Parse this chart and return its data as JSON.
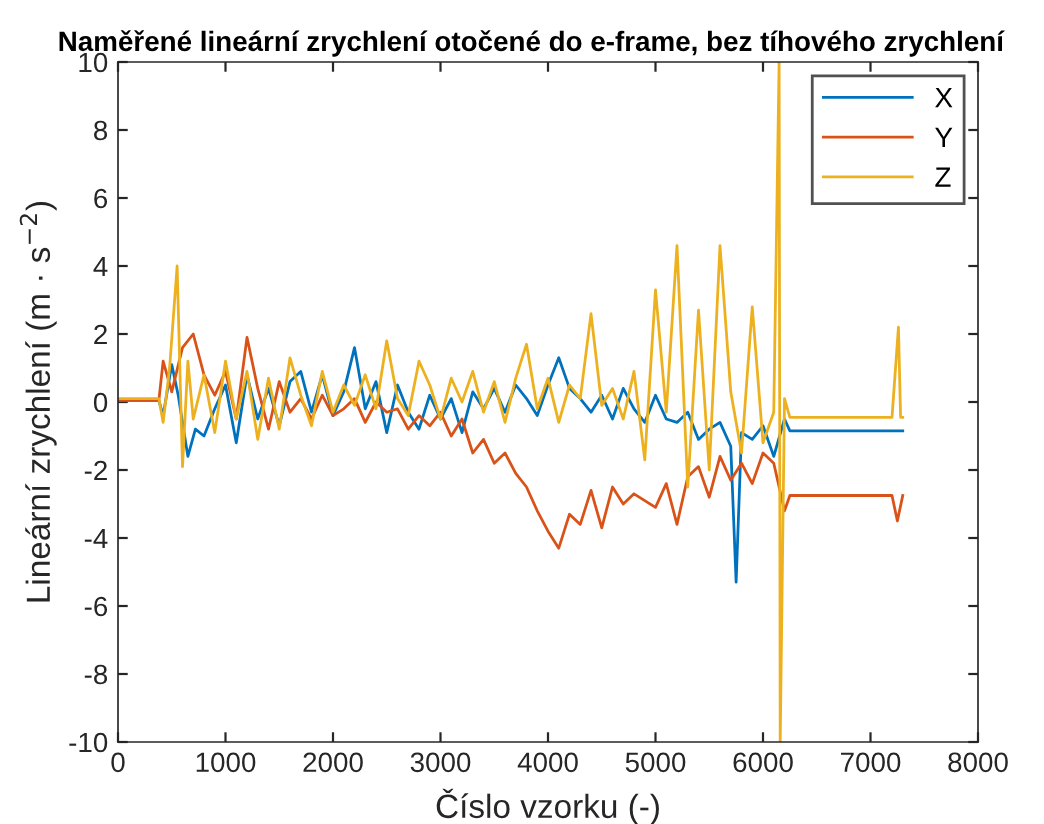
{
  "chart_data": {
    "type": "line",
    "title": "Naměřené lineární zrychlení otočené do e-frame, bez tíhového zrychlení",
    "xlabel": "Číslo vzorku (-)",
    "ylabel": "Lineární zrychlení (m · s$^{−2}$)",
    "xlim": [
      0,
      8000
    ],
    "ylim": [
      -10,
      10
    ],
    "xticks": [
      0,
      1000,
      2000,
      3000,
      4000,
      5000,
      6000,
      7000,
      8000
    ],
    "yticks": [
      -10,
      -8,
      -6,
      -4,
      -2,
      0,
      2,
      4,
      6,
      8,
      10
    ],
    "legend": "top right",
    "grid": false,
    "series": [
      {
        "name": "X",
        "color": "#0072bd",
        "x": [
          0,
          200,
          380,
          420,
          500,
          560,
          650,
          720,
          800,
          900,
          1000,
          1100,
          1200,
          1300,
          1400,
          1500,
          1600,
          1700,
          1800,
          1900,
          2000,
          2100,
          2200,
          2300,
          2400,
          2500,
          2600,
          2700,
          2800,
          2900,
          3000,
          3100,
          3200,
          3300,
          3400,
          3500,
          3600,
          3700,
          3800,
          3900,
          4000,
          4100,
          4200,
          4300,
          4400,
          4500,
          4600,
          4700,
          4800,
          4900,
          5000,
          5100,
          5200,
          5300,
          5400,
          5500,
          5600,
          5700,
          5750,
          5800,
          5900,
          6000,
          6100,
          6200,
          6250,
          6400,
          6800,
          7200,
          7300
        ],
        "values": [
          0.05,
          0.05,
          0.05,
          -0.4,
          1.1,
          0.2,
          -1.6,
          -0.8,
          -1,
          -0.2,
          0.5,
          -1.2,
          0.8,
          -0.5,
          0.4,
          -0.7,
          0.6,
          0.9,
          -0.3,
          0.8,
          -0.4,
          0.3,
          1.6,
          -0.2,
          0.6,
          -0.9,
          0.5,
          -0.3,
          -0.8,
          0.2,
          -0.5,
          0.1,
          -0.9,
          0.3,
          -0.2,
          0.4,
          -0.3,
          0.5,
          0.1,
          -0.4,
          0.5,
          1.3,
          0.4,
          0.1,
          -0.3,
          0.2,
          -0.5,
          0.4,
          -0.2,
          -0.6,
          0.2,
          -0.5,
          -0.6,
          -0.3,
          -1.1,
          -0.8,
          -0.6,
          -1.3,
          -5.3,
          -0.9,
          -1.1,
          -0.7,
          -1.6,
          -0.5,
          -0.85,
          -0.85,
          -0.85,
          -0.85,
          -0.85
        ]
      },
      {
        "name": "Y",
        "color": "#d95319",
        "x": [
          0,
          200,
          380,
          420,
          500,
          600,
          700,
          800,
          900,
          1000,
          1100,
          1200,
          1300,
          1400,
          1500,
          1600,
          1700,
          1800,
          1900,
          2000,
          2100,
          2200,
          2300,
          2400,
          2500,
          2600,
          2700,
          2800,
          2900,
          3000,
          3100,
          3200,
          3300,
          3400,
          3500,
          3600,
          3700,
          3800,
          3900,
          4000,
          4100,
          4200,
          4300,
          4400,
          4500,
          4600,
          4700,
          4800,
          4900,
          5000,
          5100,
          5200,
          5300,
          5400,
          5500,
          5600,
          5700,
          5800,
          5900,
          6000,
          6100,
          6200,
          6250,
          6400,
          6800,
          7200,
          7250,
          7300
        ],
        "values": [
          0.05,
          0.05,
          0.05,
          1.2,
          0.3,
          1.6,
          2,
          0.8,
          0.2,
          0.9,
          -0.5,
          1.9,
          0.4,
          -0.8,
          0.6,
          -0.3,
          0.1,
          -0.5,
          0.2,
          -0.4,
          -0.2,
          0.1,
          -0.6,
          0,
          -0.3,
          -0.2,
          -0.8,
          -0.4,
          -0.7,
          -0.3,
          -1,
          -0.5,
          -1.5,
          -1.1,
          -1.8,
          -1.5,
          -2.1,
          -2.5,
          -3.2,
          -3.8,
          -4.3,
          -3.3,
          -3.6,
          -2.6,
          -3.7,
          -2.5,
          -3,
          -2.7,
          -2.9,
          -3.1,
          -2.4,
          -3.6,
          -2.2,
          -1.9,
          -2.8,
          -1.6,
          -2.3,
          -1.8,
          -2.4,
          -1.5,
          -1.8,
          -3.2,
          -2.75,
          -2.75,
          -2.75,
          -2.75,
          -3.5,
          -2.75
        ]
      },
      {
        "name": "Z",
        "color": "#edb120",
        "x": [
          0,
          200,
          380,
          420,
          480,
          550,
          600,
          650,
          700,
          800,
          900,
          1000,
          1100,
          1200,
          1300,
          1400,
          1500,
          1600,
          1700,
          1800,
          1900,
          2000,
          2100,
          2200,
          2300,
          2400,
          2500,
          2600,
          2700,
          2800,
          2900,
          3000,
          3100,
          3200,
          3300,
          3400,
          3500,
          3600,
          3700,
          3800,
          3900,
          4000,
          4100,
          4200,
          4300,
          4400,
          4500,
          4600,
          4700,
          4800,
          4900,
          5000,
          5100,
          5200,
          5300,
          5400,
          5500,
          5600,
          5700,
          5800,
          5900,
          6000,
          6100,
          6150,
          6160,
          6200,
          6250,
          6400,
          6800,
          7200,
          7260,
          7280,
          7300
        ],
        "values": [
          0.1,
          0.1,
          0.1,
          -0.6,
          1,
          4,
          -1.9,
          1.2,
          -0.5,
          0.8,
          -0.9,
          1.2,
          -0.5,
          0.9,
          -1.1,
          0.7,
          -0.8,
          1.3,
          0.2,
          -0.7,
          0.9,
          -0.3,
          0.5,
          -0.1,
          0.8,
          -0.2,
          1.8,
          0.1,
          -0.4,
          1.2,
          0.5,
          -0.5,
          0.7,
          0,
          0.9,
          -0.3,
          0.6,
          -0.6,
          0.7,
          1.7,
          -0.2,
          0.7,
          -0.6,
          0.5,
          0.1,
          2.6,
          -0.1,
          0.4,
          -0.5,
          0.9,
          -1.7,
          3.3,
          -0.3,
          4.6,
          -2.5,
          2.7,
          -2,
          4.6,
          0.3,
          -1.5,
          2.8,
          -1.2,
          -0.3,
          10,
          -10,
          0.1,
          -0.45,
          -0.45,
          -0.45,
          -0.45,
          2.2,
          -0.45,
          -0.45
        ]
      }
    ]
  }
}
